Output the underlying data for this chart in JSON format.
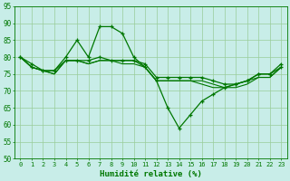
{
  "xlabel": "Humidité relative (%)",
  "xlim": [
    -0.5,
    23.5
  ],
  "ylim": [
    50,
    95
  ],
  "yticks": [
    50,
    55,
    60,
    65,
    70,
    75,
    80,
    85,
    90,
    95
  ],
  "xticks": [
    0,
    1,
    2,
    3,
    4,
    5,
    6,
    7,
    8,
    9,
    10,
    11,
    12,
    13,
    14,
    15,
    16,
    17,
    18,
    19,
    20,
    21,
    22,
    23
  ],
  "bg_color": "#c8ede8",
  "grid_color": "#99cc99",
  "line_color": "#007700",
  "series_main": [
    80,
    78,
    76,
    76,
    80,
    85,
    80,
    89,
    89,
    87,
    80,
    77,
    73,
    65,
    59,
    63,
    67,
    69,
    71,
    72,
    73,
    75,
    75,
    78
  ],
  "series_flat1": [
    80,
    77,
    76,
    76,
    79,
    79,
    79,
    80,
    79,
    79,
    79,
    78,
    74,
    74,
    74,
    74,
    74,
    73,
    72,
    72,
    73,
    75,
    75,
    77
  ],
  "series_flat2": [
    80,
    77,
    76,
    75,
    79,
    79,
    78,
    79,
    79,
    79,
    79,
    77,
    73,
    73,
    73,
    73,
    73,
    72,
    71,
    72,
    73,
    74,
    74,
    77
  ],
  "series_flat3": [
    80,
    77,
    76,
    75,
    79,
    79,
    78,
    79,
    79,
    78,
    78,
    77,
    73,
    73,
    73,
    73,
    72,
    71,
    71,
    71,
    72,
    74,
    74,
    77
  ]
}
